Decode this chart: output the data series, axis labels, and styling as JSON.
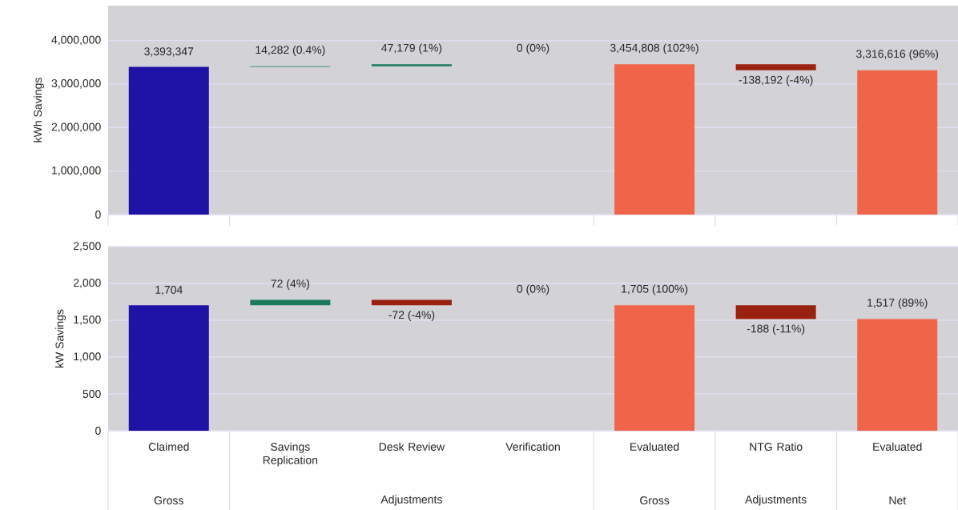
{
  "chart_data": [
    {
      "type": "bar",
      "ylabel": "kWh Savings",
      "categories": [
        null,
        null,
        null,
        null,
        null,
        null,
        null
      ],
      "values": [
        3393347,
        14282,
        47179,
        null,
        3454808,
        -138192,
        3316616
      ],
      "base": [
        0,
        3393347,
        3407629,
        null,
        0,
        3454808,
        0
      ],
      "colors": [
        "#1f12a6",
        "#1a7a5a",
        "#1a7a5a",
        "#1a7a5a",
        "#f0654a",
        "#9a2010",
        "#f0654a"
      ],
      "value_labels": [
        "3,393,347",
        "14,282 (0.4%)",
        "47,179 (1%)",
        null,
        "3,454,808 (102%)",
        "-138,192 (-4%)",
        "3,316,616 (96%)"
      ],
      "annotations": [
        "0 (0%)"
      ],
      "ylim": [
        0,
        4800000
      ],
      "yticks": [
        0,
        {
          "value": 1000000,
          "label": "1,000,000"
        },
        {
          "value": 2000000,
          "label": "2,000,000"
        },
        {
          "value": 3000000,
          "label": "3,000,000"
        },
        {
          "value": 4000000,
          "label": "4,000,000"
        }
      ],
      "grid": "y",
      "tick_labels": "y"
    },
    {
      "type": "bar",
      "ylabel": "kW Savings",
      "categories": [
        "Claimed",
        "Savings Replication",
        "Desk Review",
        "Verification",
        "Evaluated",
        "NTG Ratio",
        "Evaluated"
      ],
      "values": [
        1704,
        72,
        -72,
        null,
        1705,
        -188,
        1517
      ],
      "base": [
        0,
        1704,
        1776,
        null,
        0,
        1705,
        0
      ],
      "colors": [
        "#1f12a6",
        "#1a7a5a",
        "#9a2010",
        "#1a7a5a",
        "#f0654a",
        "#9a2010",
        "#f0654a"
      ],
      "value_labels": [
        "1,704",
        "72 (4%)",
        "-72 (-4%)",
        null,
        "1,705 (100%)",
        "-188 (-11%)",
        "1,517 (89%)"
      ],
      "ylim": [
        0,
        2500
      ],
      "yticks": [
        0,
        500,
        {
          "value": 1000,
          "label": "1,000"
        },
        {
          "value": 1500,
          "label": "1,500"
        },
        {
          "value": 2000,
          "label": "2,000"
        },
        {
          "value": 2500,
          "label": "2,500"
        }
      ],
      "grid": "y",
      "annotations": [
        "0 (0%)",
        "Gross",
        "Adjustments",
        "Gross",
        "Adjustments",
        "Net"
      ]
    }
  ]
}
